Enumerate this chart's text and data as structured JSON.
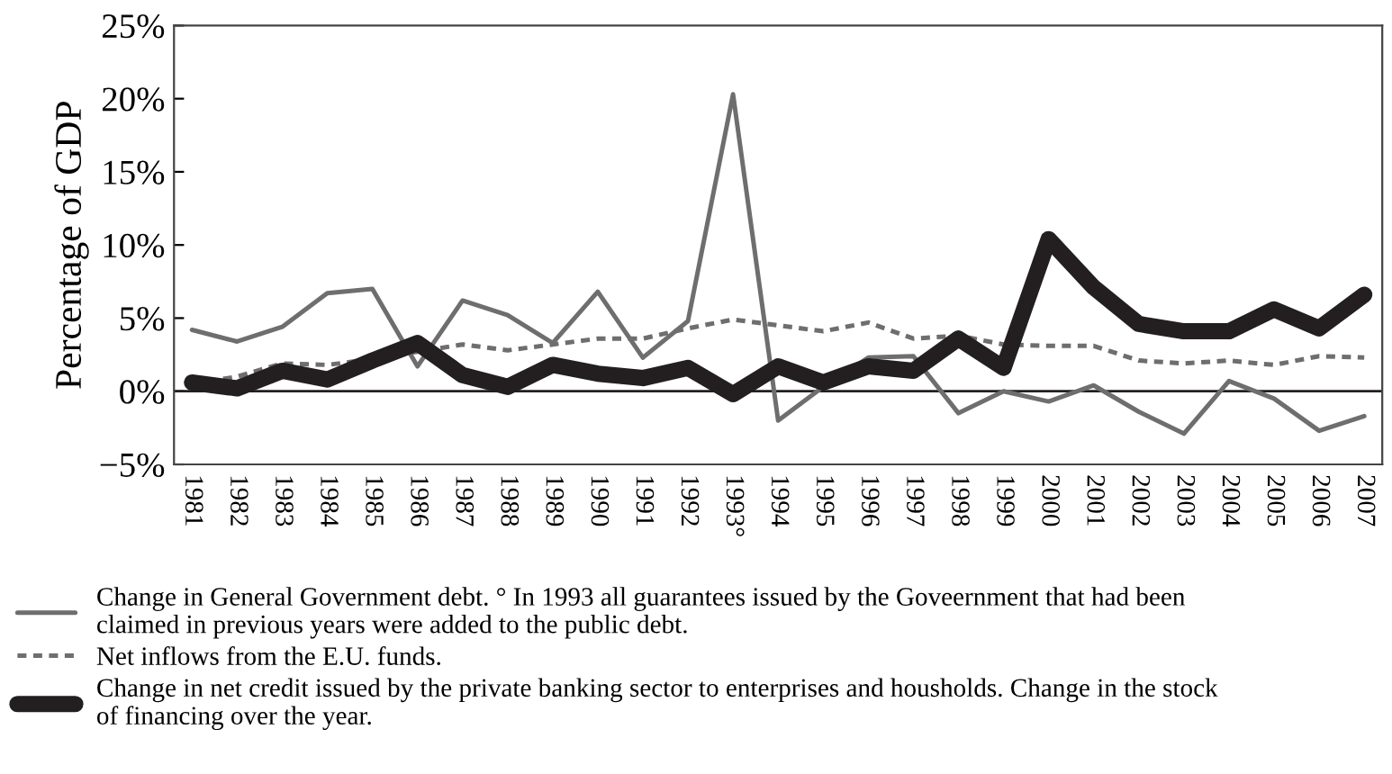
{
  "chart_data": {
    "type": "line",
    "ylabel": "Percentage of GDP",
    "categories": [
      "1981",
      "1982",
      "1983",
      "1984",
      "1985",
      "1986",
      "1987",
      "1988",
      "1989",
      "1990",
      "1991",
      "1992",
      "1993°",
      "1994",
      "1995",
      "1996",
      "1997",
      "1998",
      "1999",
      "2000",
      "2001",
      "2002",
      "2003",
      "2004",
      "2005",
      "2006",
      "2007"
    ],
    "series": [
      {
        "name": "Change in General Government debt. ° In 1993 all guarantees issued by the Goveernment that had been\nclaimed in previous years were added to the public debt.",
        "color": "#6e6e6e",
        "line_style": "solid",
        "values": [
          4.2,
          3.4,
          4.4,
          6.7,
          7.0,
          1.7,
          6.2,
          5.2,
          3.3,
          6.8,
          2.3,
          4.8,
          20.3,
          -2.0,
          0.3,
          2.3,
          2.4,
          -1.5,
          0.0,
          -0.7,
          0.4,
          -1.4,
          -2.9,
          0.7,
          -0.5,
          -2.7,
          -1.7
        ]
      },
      {
        "name": "Net inflows from the E.U. funds.",
        "color": "#6e6e6e",
        "line_style": "dashed",
        "values": [
          0.5,
          1.0,
          1.9,
          1.8,
          2.2,
          2.7,
          3.2,
          2.8,
          3.2,
          3.6,
          3.6,
          4.3,
          4.9,
          4.5,
          4.1,
          4.7,
          3.6,
          3.8,
          3.2,
          3.1,
          3.1,
          2.1,
          1.9,
          2.1,
          1.8,
          2.4,
          2.3
        ]
      },
      {
        "name": "Change in net credit issued by the private banking sector to enterprises and housholds. Change in the stock\nof financing over the year.",
        "color": "#231f20",
        "line_style": "solid",
        "values": [
          0.6,
          0.2,
          1.4,
          0.8,
          2.1,
          3.3,
          1.1,
          0.3,
          1.8,
          1.2,
          0.9,
          1.6,
          -0.2,
          1.7,
          0.6,
          1.7,
          1.4,
          3.6,
          1.6,
          10.4,
          7.1,
          4.6,
          4.1,
          4.1,
          5.6,
          4.3,
          6.6
        ]
      }
    ],
    "ylim": [
      -5,
      25
    ],
    "yticks": [
      {
        "value": -5,
        "label": "−5%"
      },
      {
        "value": 0,
        "label": "0%"
      },
      {
        "value": 5,
        "label": "5%"
      },
      {
        "value": 10,
        "label": "10%"
      },
      {
        "value": 15,
        "label": "15%"
      },
      {
        "value": 20,
        "label": "20%"
      },
      {
        "value": 25,
        "label": "25%"
      }
    ],
    "ref_lines": [
      {
        "axis": "y",
        "value": 0,
        "color": "#231f20"
      }
    ],
    "legend": "bottom",
    "grid": false
  }
}
